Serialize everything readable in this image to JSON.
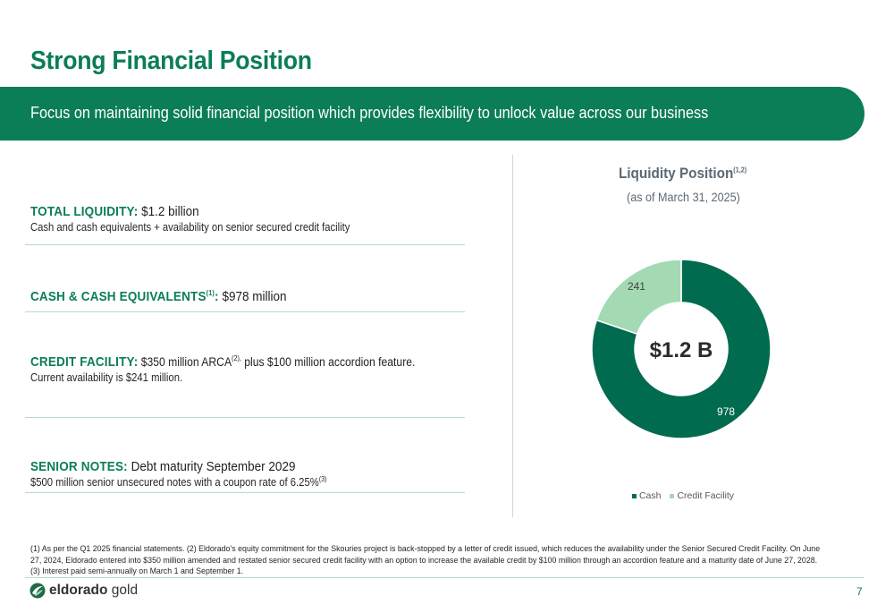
{
  "page": {
    "title": "Strong Financial Position",
    "banner": "Focus on maintaining solid financial position which provides flexibility to unlock value across our business",
    "page_number": "7"
  },
  "sections": {
    "total_liquidity": {
      "label": "TOTAL LIQUIDITY:",
      "value": " $1.2 billion",
      "sub": "Cash and cash equivalents + availability on senior secured credit facility"
    },
    "cash": {
      "label": "CASH & CASH EQUIVALENTS",
      "sup": "(1)",
      "colon": ":",
      "value": " $978 million"
    },
    "credit": {
      "label": "CREDIT FACILITY:",
      "value_a": " $350 million ARCA",
      "sup": "(2),",
      "value_b": " plus $100 million accordion feature.",
      "sub": "Current availability is $241 million."
    },
    "senior_notes": {
      "label": "SENIOR NOTES:",
      "value": " Debt maturity September 2029",
      "sub": "$500 million senior unsecured notes with a coupon rate of 6.25%",
      "sub_sup": "(3)"
    }
  },
  "chart": {
    "title": "Liquidity Position",
    "title_sup": "(1,2)",
    "subtitle": "(as of March 31, 2025)",
    "center_label": "$1.2 B"
  },
  "chart_data": {
    "type": "pie",
    "title": "Liquidity Position",
    "subtitle": "(as of March 31, 2025)",
    "donut": true,
    "center_label": "$1.2 B",
    "categories": [
      "Cash",
      "Credit Facility"
    ],
    "values": [
      978,
      241
    ],
    "data_labels": [
      "978",
      "241"
    ],
    "colors": [
      "#006b4e",
      "#a3dab4"
    ],
    "label_colors": [
      "#ffffff",
      "#404040"
    ],
    "legend": {
      "position": "bottom",
      "entries": [
        "Cash",
        "Credit Facility"
      ]
    }
  },
  "footnote": "(1) As per the Q1 2025 financial statements. (2) Eldorado’s equity commitment for the Skouries project is back-stopped by a letter of credit issued, which reduces the availability under the Senior Secured Credit Facility. On June 27, 2024, Eldorado entered into $350 million amended and restated senior secured credit facility with an option to increase the available credit by $100 million through an accordion feature and a maturity date of June 27, 2028. (3) Interest paid semi-annually on March 1 and September 1.",
  "logo": {
    "icon": "eldorado-gold-logo-icon",
    "text_bold": "eldorado",
    "text_light": " gold"
  }
}
